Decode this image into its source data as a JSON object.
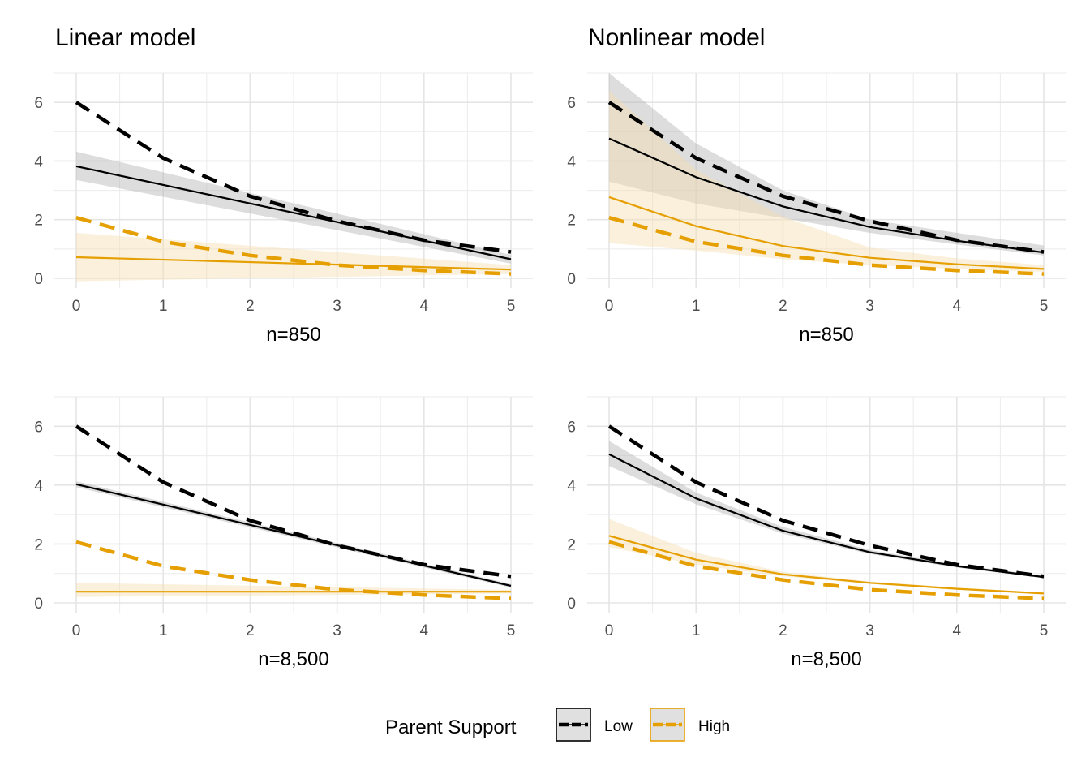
{
  "chart_data": [
    {
      "type": "line",
      "title": "Linear model",
      "xlabel": "n=850",
      "ylabel": "",
      "xlim": [
        0,
        5
      ],
      "ylim": [
        0,
        7
      ],
      "x_ticks": [
        0,
        1,
        2,
        3,
        4,
        5
      ],
      "y_ticks": [
        0,
        2,
        4,
        6
      ],
      "grid": true,
      "series": [
        {
          "group": "Low",
          "kind": "truth-dashed",
          "x": [
            0,
            1,
            2,
            3,
            4,
            5
          ],
          "y": [
            6.0,
            4.1,
            2.8,
            1.95,
            1.3,
            0.9
          ]
        },
        {
          "group": "Low",
          "kind": "estimate",
          "x": [
            0,
            5
          ],
          "y": [
            3.82,
            0.65
          ],
          "lower": [
            3.35,
            0.5
          ],
          "upper": [
            4.32,
            0.8
          ]
        },
        {
          "group": "High",
          "kind": "truth-dashed",
          "x": [
            0,
            1,
            2,
            3,
            4,
            5
          ],
          "y": [
            2.07,
            1.25,
            0.78,
            0.45,
            0.27,
            0.15
          ]
        },
        {
          "group": "High",
          "kind": "estimate",
          "x": [
            0,
            5
          ],
          "y": [
            0.72,
            0.3
          ],
          "lower": [
            -0.1,
            0.15
          ],
          "upper": [
            1.55,
            0.45
          ]
        }
      ]
    },
    {
      "type": "line",
      "title": "Nonlinear model",
      "xlabel": "n=850",
      "ylabel": "",
      "xlim": [
        0,
        5
      ],
      "ylim": [
        0,
        7
      ],
      "x_ticks": [
        0,
        1,
        2,
        3,
        4,
        5
      ],
      "y_ticks": [
        0,
        2,
        4,
        6
      ],
      "grid": true,
      "series": [
        {
          "group": "Low",
          "kind": "truth-dashed",
          "x": [
            0,
            1,
            2,
            3,
            4,
            5
          ],
          "y": [
            6.0,
            4.1,
            2.8,
            1.95,
            1.3,
            0.9
          ]
        },
        {
          "group": "Low",
          "kind": "estimate",
          "x": [
            0,
            1,
            2,
            3,
            4,
            5
          ],
          "y": [
            4.77,
            3.45,
            2.45,
            1.75,
            1.28,
            0.88
          ],
          "lower": [
            3.3,
            2.55,
            2.05,
            1.55,
            1.15,
            0.78
          ],
          "upper": [
            7.0,
            4.6,
            3.0,
            2.0,
            1.55,
            1.12
          ]
        },
        {
          "group": "High",
          "kind": "truth-dashed",
          "x": [
            0,
            1,
            2,
            3,
            4,
            5
          ],
          "y": [
            2.07,
            1.25,
            0.78,
            0.45,
            0.27,
            0.15
          ]
        },
        {
          "group": "High",
          "kind": "estimate",
          "x": [
            0,
            1,
            2,
            3,
            4,
            5
          ],
          "y": [
            2.77,
            1.78,
            1.1,
            0.7,
            0.48,
            0.32
          ],
          "lower": [
            1.2,
            0.95,
            0.65,
            0.45,
            0.32,
            0.22
          ],
          "upper": [
            6.4,
            3.7,
            2.1,
            1.05,
            0.68,
            0.45
          ]
        }
      ]
    },
    {
      "type": "line",
      "title": "",
      "xlabel": "n=8,500",
      "ylabel": "",
      "xlim": [
        0,
        5
      ],
      "ylim": [
        0,
        7
      ],
      "x_ticks": [
        0,
        1,
        2,
        3,
        4,
        5
      ],
      "y_ticks": [
        0,
        2,
        4,
        6
      ],
      "grid": true,
      "series": [
        {
          "group": "Low",
          "kind": "truth-dashed",
          "x": [
            0,
            1,
            2,
            3,
            4,
            5
          ],
          "y": [
            6.0,
            4.1,
            2.8,
            1.95,
            1.3,
            0.9
          ]
        },
        {
          "group": "Low",
          "kind": "estimate",
          "x": [
            0,
            5
          ],
          "y": [
            4.03,
            0.58
          ],
          "lower": [
            3.93,
            0.52
          ],
          "upper": [
            4.13,
            0.64
          ]
        },
        {
          "group": "High",
          "kind": "truth-dashed",
          "x": [
            0,
            1,
            2,
            3,
            4,
            5
          ],
          "y": [
            2.07,
            1.25,
            0.78,
            0.45,
            0.27,
            0.15
          ]
        },
        {
          "group": "High",
          "kind": "estimate",
          "x": [
            0,
            5
          ],
          "y": [
            0.38,
            0.38
          ],
          "lower": [
            0.2,
            0.32
          ],
          "upper": [
            0.68,
            0.44
          ]
        }
      ]
    },
    {
      "type": "line",
      "title": "",
      "xlabel": "n=8,500",
      "ylabel": "",
      "xlim": [
        0,
        5
      ],
      "ylim": [
        0,
        7
      ],
      "x_ticks": [
        0,
        1,
        2,
        3,
        4,
        5
      ],
      "y_ticks": [
        0,
        2,
        4,
        6
      ],
      "grid": true,
      "series": [
        {
          "group": "Low",
          "kind": "truth-dashed",
          "x": [
            0,
            1,
            2,
            3,
            4,
            5
          ],
          "y": [
            6.0,
            4.1,
            2.8,
            1.95,
            1.3,
            0.9
          ]
        },
        {
          "group": "Low",
          "kind": "estimate",
          "x": [
            0,
            1,
            2,
            3,
            4,
            5
          ],
          "y": [
            5.05,
            3.55,
            2.45,
            1.72,
            1.25,
            0.88
          ],
          "lower": [
            4.65,
            3.35,
            2.35,
            1.66,
            1.2,
            0.84
          ],
          "upper": [
            5.5,
            3.75,
            2.58,
            1.8,
            1.3,
            0.93
          ]
        },
        {
          "group": "High",
          "kind": "truth-dashed",
          "x": [
            0,
            1,
            2,
            3,
            4,
            5
          ],
          "y": [
            2.07,
            1.25,
            0.78,
            0.45,
            0.27,
            0.15
          ]
        },
        {
          "group": "High",
          "kind": "estimate",
          "x": [
            0,
            1,
            2,
            3,
            4,
            5
          ],
          "y": [
            2.28,
            1.47,
            0.97,
            0.68,
            0.48,
            0.32
          ],
          "lower": [
            1.9,
            1.3,
            0.9,
            0.64,
            0.45,
            0.3
          ],
          "upper": [
            2.85,
            1.7,
            1.05,
            0.73,
            0.52,
            0.35
          ]
        }
      ]
    }
  ],
  "legend": {
    "title": "Parent Support",
    "position": "bottom",
    "items": [
      {
        "label": "Low",
        "color": "#000000",
        "fill": "#b3b3b3"
      },
      {
        "label": "High",
        "color": "#e69f00",
        "fill": "#f5deb0"
      }
    ]
  }
}
